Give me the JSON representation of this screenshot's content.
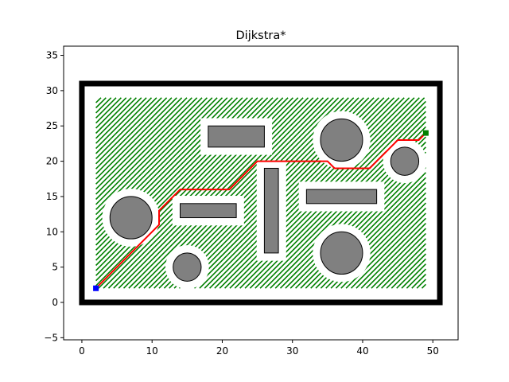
{
  "chart_data": {
    "type": "scatter",
    "title": "Dijkstra*",
    "xlabel": "",
    "ylabel": "",
    "xlim": [
      -2.6,
      53.6
    ],
    "ylim": [
      -5.3,
      36.3
    ],
    "xticks": [
      0,
      10,
      20,
      30,
      40,
      50
    ],
    "yticks": [
      -5,
      0,
      5,
      10,
      15,
      20,
      25,
      30,
      35
    ],
    "grid": false,
    "colors": {
      "wall": "#000000",
      "obstacle_fill": "#808080",
      "obstacle_edge": "#000000",
      "explored": "#008000",
      "path": "#ff0000",
      "start": "#0000ff",
      "goal": "#008000"
    },
    "boundary": {
      "x0": 0,
      "y0": 0,
      "x1": 51,
      "y1": 31
    },
    "start": [
      2,
      2
    ],
    "goal": [
      49,
      24
    ],
    "circle_obstacles": [
      {
        "cx": 7,
        "cy": 12,
        "r": 3
      },
      {
        "cx": 15,
        "cy": 5,
        "r": 2
      },
      {
        "cx": 37,
        "cy": 23,
        "r": 3
      },
      {
        "cx": 37,
        "cy": 7,
        "r": 3
      },
      {
        "cx": 46,
        "cy": 20,
        "r": 2
      }
    ],
    "rect_obstacles": [
      {
        "x": 18,
        "y": 22,
        "w": 8,
        "h": 3
      },
      {
        "x": 14,
        "y": 12,
        "w": 8,
        "h": 2
      },
      {
        "x": 26,
        "y": 7,
        "w": 2,
        "h": 12
      },
      {
        "x": 32,
        "y": 14,
        "w": 10,
        "h": 2
      }
    ],
    "path": [
      [
        2,
        2
      ],
      [
        11,
        11
      ],
      [
        11,
        13
      ],
      [
        14,
        16
      ],
      [
        21,
        16
      ],
      [
        25,
        20
      ],
      [
        35,
        20
      ],
      [
        36,
        19
      ],
      [
        41,
        19
      ],
      [
        45,
        23
      ],
      [
        48,
        23
      ],
      [
        49,
        24
      ]
    ]
  }
}
